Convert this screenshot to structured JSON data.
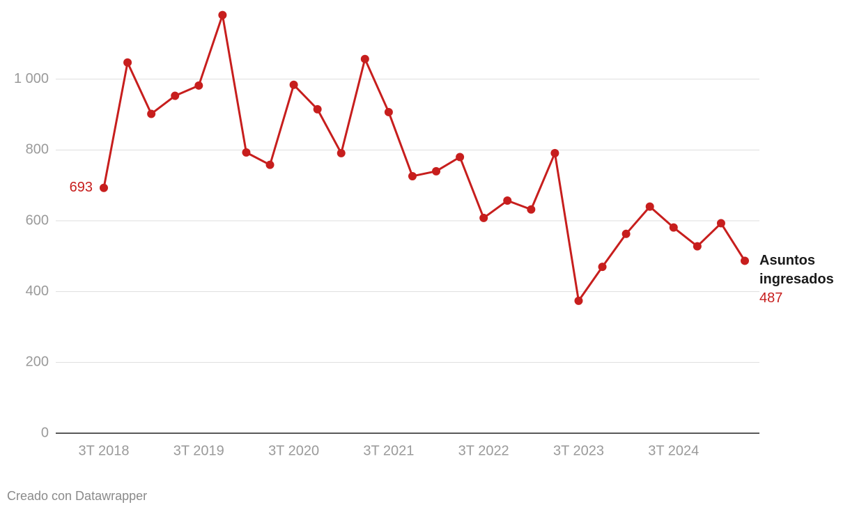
{
  "chart_data": {
    "type": "line",
    "categories": [
      "3T 2018",
      null,
      null,
      null,
      "3T 2019",
      null,
      null,
      null,
      "3T 2020",
      null,
      null,
      null,
      "3T 2021",
      null,
      null,
      null,
      "3T 2022",
      null,
      null,
      null,
      "3T 2023",
      null,
      null,
      null,
      "3T 2024",
      null,
      null,
      null
    ],
    "series": [
      {
        "name": "Asuntos ingresados",
        "color": "#c71e1d",
        "values": [
          693,
          1047,
          902,
          953,
          982,
          1181,
          793,
          758,
          984,
          915,
          791,
          1057,
          907,
          726,
          740,
          780,
          608,
          657,
          632,
          791,
          374,
          470,
          563,
          640,
          581,
          528,
          593,
          487
        ]
      }
    ],
    "ylim": [
      0,
      1200
    ],
    "yticks": [
      0,
      200,
      400,
      600,
      800,
      {
        "value": 1000,
        "label": "1 000"
      }
    ],
    "grid": true,
    "credit": "Creado con Datawrapper"
  }
}
